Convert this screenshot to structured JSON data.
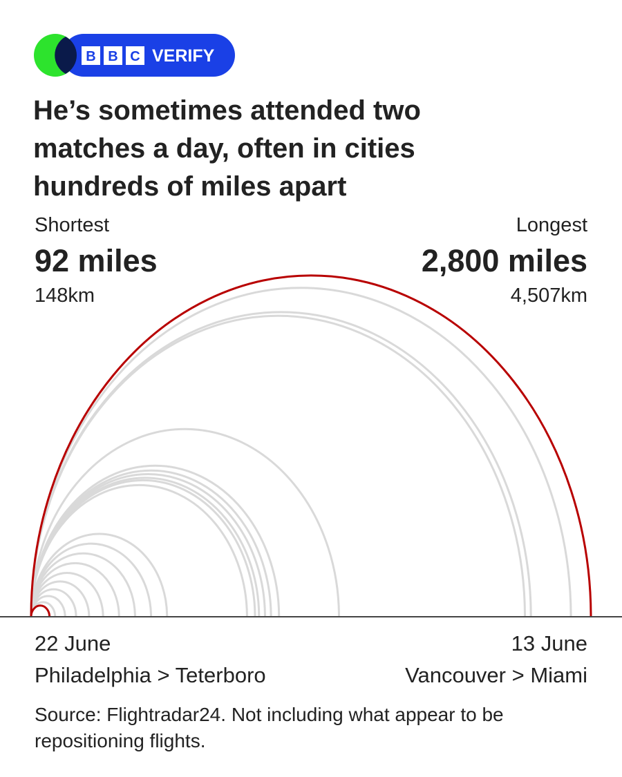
{
  "header": {
    "logo_letters": [
      "B",
      "B",
      "C"
    ],
    "logo_text": "VERIFY"
  },
  "chart_data": {
    "type": "arc",
    "title": "He’s sometimes attended two matches a day, often in cities hundreds of miles apart",
    "highlights": [
      {
        "name": "Shortest",
        "value": 92,
        "value_label": "92 miles",
        "km_label": "148km",
        "date": "22 June",
        "route": "Philadelphia > Teterboro"
      },
      {
        "name": "Longest",
        "value": 2800,
        "value_label": "2,800 miles",
        "km_label": "4,507km",
        "date": "13 June",
        "route": "Vancouver > Miami"
      }
    ],
    "values": [
      120,
      170,
      225,
      290,
      360,
      440,
      520,
      600,
      680,
      1080,
      1120,
      1140,
      1170,
      1200,
      1240,
      1540,
      2470,
      2500,
      2700
    ],
    "color": "#d9d9d9",
    "highlight_color": "#b80000",
    "xlim": [
      0,
      2800
    ],
    "source": "Source: Flightradar24. Not including what appear to be repositioning flights."
  }
}
